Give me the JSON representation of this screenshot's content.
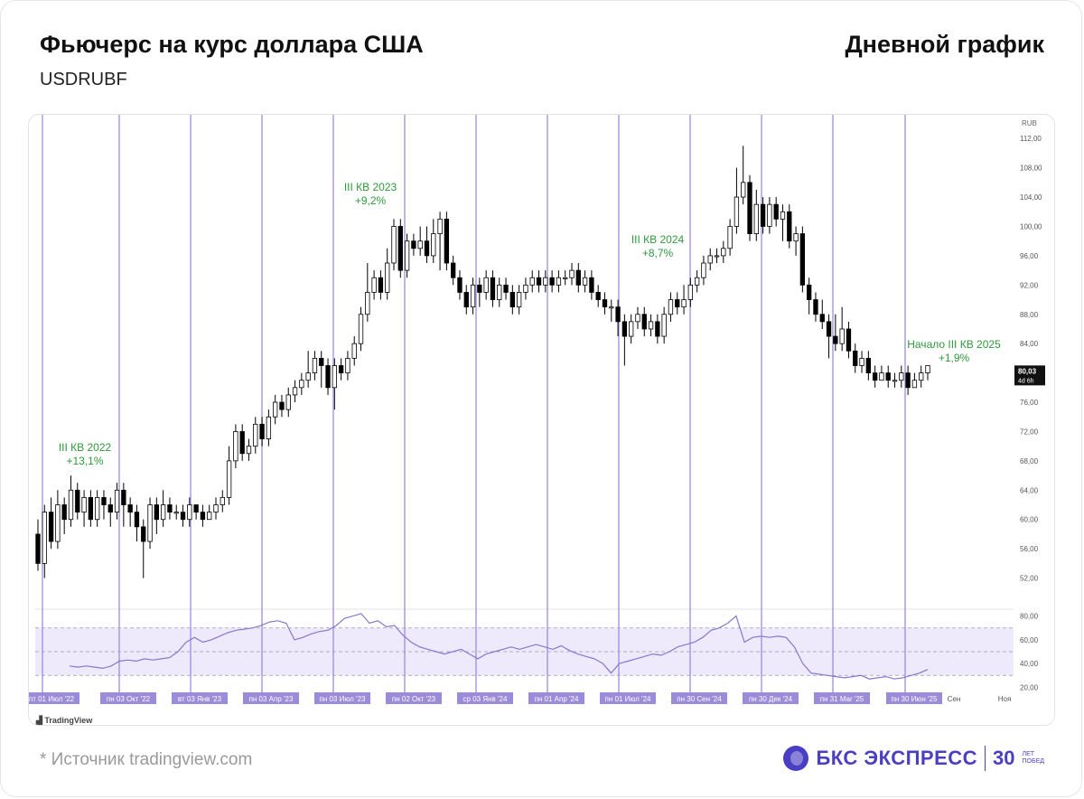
{
  "header": {
    "title": "Фьючерс на курс доллара США",
    "ticker": "USDRUBF",
    "timeframe": "Дневной график"
  },
  "footer": {
    "source": "*  Источник tradingview.com",
    "brand_name": "БКС ЭКСПРЕСС",
    "brand_years": "30",
    "brand_small_1": "ЛЕТ",
    "brand_small_2": "ПОБЕД",
    "tradingview": "TradingView"
  },
  "colors": {
    "quarter_line": "#a594e0",
    "annotation": "#2e9a3a",
    "rsi_line": "#8877cc",
    "rsi_band": "#efeafb",
    "candle_up": "#ffffff",
    "candle_down": "#000000",
    "x_label_bg": "#9c8bd8"
  },
  "chart_data": [
    {
      "type": "candlestick",
      "currency_label": "RUB",
      "ylim": [
        48,
        114
      ],
      "y_ticks": [
        "112,00",
        "108,00",
        "104,00",
        "100,00",
        "96,00",
        "92,00",
        "88,00",
        "84,00",
        "80,00",
        "76,00",
        "72,00",
        "68,00",
        "64,00",
        "60,00",
        "56,00",
        "52,00"
      ],
      "last_price": "80,03",
      "last_timer": "4d 6h",
      "quarter_start_labels": [
        "пт 01 Июл '22",
        "пн 03 Окт '22",
        "вт 03 Янв '23",
        "пн 03 Апр '23",
        "пн 03 Июл '23",
        "пн 02 Окт '23",
        "ср 03 Янв '24",
        "пн 01 Апр '24",
        "пн 01 Июл '24",
        "пн 30 Сен '24",
        "пн 30 Дек '24",
        "пн 31 Mar '25",
        "пн 30 Июн '25"
      ],
      "other_x_labels": [
        "Сен",
        "Ноя"
      ],
      "annotations": [
        {
          "line1": "III КВ 2022",
          "line2": "+13,1%"
        },
        {
          "line1": "III КВ 2023",
          "line2": "+9,2%"
        },
        {
          "line1": "III КВ 2024",
          "line2": "+8,7%"
        },
        {
          "line1": "Начало III КВ 2025",
          "line2": "+1,9%"
        }
      ],
      "weekly_candles": [
        [
          58,
          54,
          60,
          53
        ],
        [
          54,
          61,
          62,
          52
        ],
        [
          61,
          57,
          63,
          56
        ],
        [
          57,
          62,
          64,
          56
        ],
        [
          62,
          60,
          63,
          58
        ],
        [
          60,
          64,
          66,
          59
        ],
        [
          64,
          61,
          65,
          60
        ],
        [
          61,
          63,
          64,
          59
        ],
        [
          63,
          60,
          64,
          59
        ],
        [
          60,
          63,
          64,
          59
        ],
        [
          63,
          62,
          64,
          60
        ],
        [
          62,
          61,
          63,
          59
        ],
        [
          61,
          64,
          65,
          60
        ],
        [
          64,
          62,
          65,
          59
        ],
        [
          62,
          61,
          63,
          59
        ],
        [
          61,
          59,
          62,
          57
        ],
        [
          59,
          57,
          60,
          52
        ],
        [
          57,
          62,
          63,
          56
        ],
        [
          62,
          60,
          63,
          58
        ],
        [
          60,
          62,
          64,
          59
        ],
        [
          62,
          61,
          63,
          60
        ],
        [
          61,
          61,
          62,
          60
        ],
        [
          61,
          60,
          62,
          59
        ],
        [
          60,
          62,
          63,
          59
        ],
        [
          62,
          61,
          62,
          60
        ],
        [
          61,
          60,
          62,
          59
        ],
        [
          60,
          61,
          62,
          60
        ],
        [
          61,
          62,
          63,
          60
        ],
        [
          62,
          63,
          64,
          61
        ],
        [
          63,
          68,
          70,
          62
        ],
        [
          68,
          72,
          73,
          67
        ],
        [
          72,
          69,
          73,
          68
        ],
        [
          69,
          70,
          71,
          68
        ],
        [
          70,
          73,
          74,
          69
        ],
        [
          73,
          71,
          74,
          70
        ],
        [
          71,
          74,
          75,
          70
        ],
        [
          74,
          76,
          77,
          73
        ],
        [
          76,
          75,
          77,
          74
        ],
        [
          75,
          77,
          78,
          74
        ],
        [
          77,
          78,
          79,
          76
        ],
        [
          78,
          79,
          80,
          77
        ],
        [
          79,
          80,
          83,
          78
        ],
        [
          80,
          82,
          83,
          79
        ],
        [
          82,
          81,
          83,
          78
        ],
        [
          81,
          78,
          82,
          77
        ],
        [
          78,
          81,
          82,
          75
        ],
        [
          81,
          80,
          82,
          79
        ],
        [
          80,
          82,
          83,
          79
        ],
        [
          82,
          84,
          85,
          81
        ],
        [
          84,
          88,
          89,
          83
        ],
        [
          88,
          91,
          95,
          87
        ],
        [
          91,
          93,
          94,
          90
        ],
        [
          93,
          91,
          94,
          90
        ],
        [
          91,
          95,
          97,
          90
        ],
        [
          95,
          100,
          101,
          94
        ],
        [
          100,
          94,
          101,
          93
        ],
        [
          94,
          98,
          99,
          93
        ],
        [
          98,
          97,
          99,
          96
        ],
        [
          97,
          98,
          100,
          96
        ],
        [
          98,
          96,
          100,
          95
        ],
        [
          96,
          99,
          101,
          95
        ],
        [
          99,
          101,
          102,
          94
        ],
        [
          101,
          95,
          102,
          94
        ],
        [
          95,
          93,
          96,
          92
        ],
        [
          93,
          91,
          94,
          90
        ],
        [
          91,
          89,
          92,
          88
        ],
        [
          89,
          92,
          93,
          88
        ],
        [
          92,
          91,
          93,
          89
        ],
        [
          91,
          93,
          94,
          90
        ],
        [
          93,
          90,
          94,
          89
        ],
        [
          90,
          92,
          93,
          89
        ],
        [
          92,
          91,
          93,
          90
        ],
        [
          91,
          89,
          92,
          88
        ],
        [
          89,
          91,
          92,
          88
        ],
        [
          91,
          92,
          93,
          90
        ],
        [
          92,
          93,
          94,
          91
        ],
        [
          93,
          92,
          94,
          91
        ],
        [
          92,
          93,
          94,
          91
        ],
        [
          93,
          92,
          94,
          91
        ],
        [
          92,
          93,
          94,
          91
        ],
        [
          93,
          93,
          94,
          92
        ],
        [
          93,
          94,
          95,
          92
        ],
        [
          94,
          92,
          95,
          91
        ],
        [
          92,
          93,
          94,
          91
        ],
        [
          93,
          91,
          94,
          90
        ],
        [
          91,
          90,
          92,
          89
        ],
        [
          90,
          89,
          91,
          88
        ],
        [
          89,
          89,
          90,
          87
        ],
        [
          89,
          87,
          90,
          85
        ],
        [
          87,
          85,
          88,
          81
        ],
        [
          85,
          87,
          88,
          84
        ],
        [
          87,
          88,
          89,
          86
        ],
        [
          88,
          86,
          89,
          85
        ],
        [
          86,
          87,
          88,
          85
        ],
        [
          87,
          85,
          88,
          84
        ],
        [
          85,
          88,
          89,
          84
        ],
        [
          88,
          90,
          91,
          87
        ],
        [
          90,
          89,
          91,
          88
        ],
        [
          89,
          90,
          92,
          88
        ],
        [
          90,
          92,
          93,
          89
        ],
        [
          92,
          93,
          94,
          91
        ],
        [
          93,
          95,
          96,
          92
        ],
        [
          95,
          96,
          97,
          94
        ],
        [
          96,
          96,
          97,
          95
        ],
        [
          96,
          97,
          98,
          95
        ],
        [
          97,
          100,
          101,
          96
        ],
        [
          100,
          104,
          108,
          99
        ],
        [
          104,
          106,
          111,
          103
        ],
        [
          106,
          99,
          107,
          98
        ],
        [
          99,
          103,
          105,
          98
        ],
        [
          103,
          100,
          104,
          99
        ],
        [
          100,
          103,
          104,
          99
        ],
        [
          103,
          101,
          104,
          100
        ],
        [
          101,
          102,
          103,
          98
        ],
        [
          102,
          98,
          103,
          97
        ],
        [
          98,
          99,
          100,
          96
        ],
        [
          99,
          92,
          100,
          91
        ],
        [
          92,
          90,
          93,
          88
        ],
        [
          90,
          88,
          91,
          87
        ],
        [
          88,
          87,
          90,
          86
        ],
        [
          87,
          85,
          88,
          82
        ],
        [
          85,
          84,
          88,
          83
        ],
        [
          84,
          86,
          89,
          83
        ],
        [
          86,
          83,
          87,
          82
        ],
        [
          83,
          81,
          84,
          80
        ],
        [
          81,
          82,
          83,
          80
        ],
        [
          82,
          80,
          83,
          79
        ],
        [
          80,
          79,
          81,
          78
        ],
        [
          79,
          80,
          81,
          79
        ],
        [
          80,
          79,
          81,
          78
        ],
        [
          79,
          79,
          80,
          78
        ],
        [
          79,
          80,
          81,
          78
        ],
        [
          80,
          78,
          81,
          77
        ],
        [
          78,
          79,
          80,
          78
        ],
        [
          79,
          80,
          81,
          78
        ],
        [
          80,
          81,
          81,
          79
        ]
      ],
      "rsi": {
        "levels": [
          70,
          50,
          30
        ],
        "ylim": [
          15,
          85
        ],
        "y_ticks": [
          "80,00",
          "60,00",
          "40,00",
          "20,00"
        ],
        "values": [
          38,
          37,
          38,
          37,
          36,
          38,
          42,
          43,
          42,
          44,
          43,
          44,
          45,
          50,
          58,
          62,
          58,
          60,
          63,
          66,
          68,
          69,
          70,
          72,
          75,
          76,
          74,
          60,
          62,
          65,
          67,
          68,
          72,
          78,
          80,
          82,
          74,
          76,
          71,
          72,
          64,
          58,
          54,
          52,
          50,
          48,
          50,
          52,
          48,
          44,
          48,
          50,
          52,
          54,
          52,
          54,
          56,
          54,
          52,
          55,
          51,
          48,
          46,
          44,
          40,
          32,
          40,
          42,
          44,
          46,
          48,
          47,
          50,
          54,
          56,
          58,
          62,
          68,
          70,
          74,
          80,
          58,
          62,
          63,
          62,
          63,
          62,
          54,
          40,
          32,
          31,
          30,
          29,
          28,
          29,
          30,
          27,
          28,
          29,
          27,
          28,
          30,
          32,
          35
        ]
      }
    }
  ]
}
